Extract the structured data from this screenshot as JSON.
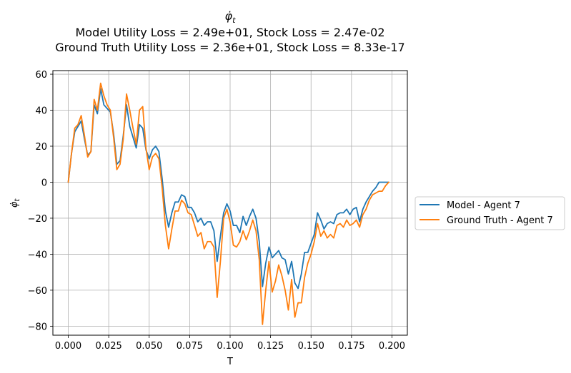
{
  "chart_data": {
    "type": "line",
    "title": {
      "symbol": "φ̇",
      "symbol_sub": "t",
      "line2": "Model Utility Loss = 2.49e+01, Stock Loss = 2.47e-02",
      "line3": "Ground Truth Utility Loss = 2.36e+01, Stock Loss = 8.33e-17"
    },
    "xlabel": "T",
    "ylabel": "φ̇",
    "ylabel_sub": "t",
    "xlim": [
      -0.0095,
      0.2095
    ],
    "ylim": [
      -85,
      62
    ],
    "xticks": [
      0.0,
      0.025,
      0.05,
      0.075,
      0.1,
      0.125,
      0.15,
      0.175,
      0.2
    ],
    "xtick_labels": [
      "0.000",
      "0.025",
      "0.050",
      "0.075",
      "0.100",
      "0.125",
      "0.150",
      "0.175",
      "0.200"
    ],
    "yticks": [
      -80,
      -60,
      -40,
      -20,
      0,
      20,
      40,
      60
    ],
    "ytick_labels": [
      "−80",
      "−60",
      "−40",
      "−20",
      "0",
      "20",
      "40",
      "60"
    ],
    "grid": true,
    "legend_position": "outside-right",
    "x": [
      0.0,
      0.002,
      0.004,
      0.006,
      0.008,
      0.01,
      0.012,
      0.014,
      0.016,
      0.018,
      0.02,
      0.022,
      0.024,
      0.026,
      0.028,
      0.03,
      0.032,
      0.034,
      0.036,
      0.038,
      0.04,
      0.042,
      0.044,
      0.046,
      0.048,
      0.05,
      0.052,
      0.054,
      0.056,
      0.058,
      0.06,
      0.062,
      0.064,
      0.066,
      0.068,
      0.07,
      0.072,
      0.074,
      0.076,
      0.078,
      0.08,
      0.082,
      0.084,
      0.086,
      0.088,
      0.09,
      0.092,
      0.094,
      0.096,
      0.098,
      0.1,
      0.102,
      0.104,
      0.106,
      0.108,
      0.11,
      0.112,
      0.114,
      0.116,
      0.118,
      0.12,
      0.122,
      0.124,
      0.126,
      0.128,
      0.13,
      0.132,
      0.134,
      0.136,
      0.138,
      0.14,
      0.142,
      0.144,
      0.146,
      0.148,
      0.15,
      0.152,
      0.154,
      0.156,
      0.158,
      0.16,
      0.162,
      0.164,
      0.166,
      0.168,
      0.17,
      0.172,
      0.174,
      0.176,
      0.178,
      0.18,
      0.182,
      0.184,
      0.186,
      0.188,
      0.19,
      0.192,
      0.194,
      0.196,
      0.198
    ],
    "series": [
      {
        "name": "Model - Agent 7",
        "color": "#1f77b4",
        "values": [
          0,
          16,
          28,
          31,
          34,
          24,
          15,
          17,
          43,
          38,
          52,
          43,
          41,
          39,
          27,
          10,
          12,
          26,
          43,
          31,
          25,
          19,
          32,
          30,
          18,
          13,
          18,
          20,
          17,
          2,
          -16,
          -25,
          -17,
          -11,
          -11,
          -7,
          -8,
          -14,
          -14,
          -17,
          -22,
          -20,
          -24,
          -22,
          -22,
          -27,
          -44,
          -30,
          -17,
          -12,
          -16,
          -24,
          -24,
          -28,
          -19,
          -24,
          -19,
          -15,
          -20,
          -33,
          -58,
          -45,
          -36,
          -42,
          -40,
          -38,
          -42,
          -43,
          -51,
          -44,
          -56,
          -59,
          -51,
          -39,
          -39,
          -34,
          -29,
          -17,
          -21,
          -26,
          -23,
          -22,
          -23,
          -18,
          -17,
          -17,
          -15,
          -18,
          -15,
          -14,
          -22,
          -15,
          -11,
          -8,
          -5,
          -3,
          0,
          0,
          0,
          0
        ]
      },
      {
        "name": "Ground Truth - Agent 7",
        "color": "#ff7f0e",
        "values": [
          0,
          16,
          30,
          32,
          37,
          26,
          14,
          17,
          46,
          40,
          55,
          48,
          43,
          40,
          25,
          7,
          10,
          24,
          49,
          40,
          30,
          21,
          40,
          42,
          19,
          7,
          14,
          16,
          13,
          -3,
          -24,
          -37,
          -26,
          -16,
          -16,
          -10,
          -12,
          -17,
          -18,
          -24,
          -30,
          -28,
          -37,
          -33,
          -33,
          -36,
          -64,
          -44,
          -20,
          -15,
          -22,
          -35,
          -36,
          -33,
          -27,
          -32,
          -27,
          -21,
          -27,
          -43,
          -79,
          -60,
          -44,
          -61,
          -55,
          -46,
          -52,
          -60,
          -71,
          -54,
          -75,
          -67,
          -67,
          -53,
          -45,
          -40,
          -33,
          -23,
          -30,
          -27,
          -31,
          -29,
          -31,
          -24,
          -23,
          -25,
          -21,
          -24,
          -23,
          -21,
          -25,
          -18,
          -15,
          -10,
          -7,
          -6,
          -5,
          -5,
          -2,
          0
        ]
      }
    ]
  }
}
